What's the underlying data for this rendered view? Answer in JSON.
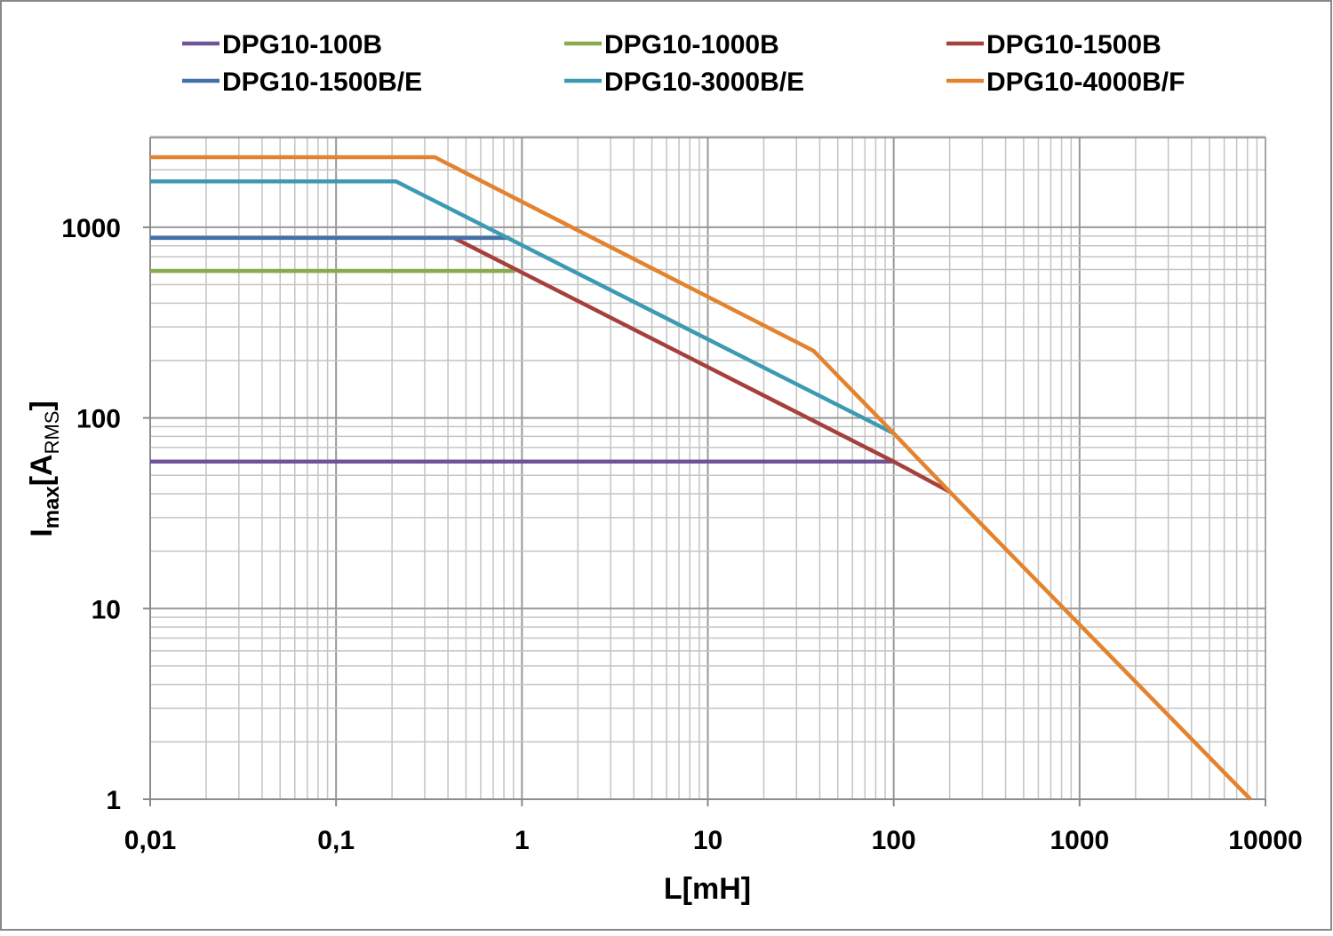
{
  "chart_data": {
    "type": "line",
    "title": "",
    "xlabel": "L[mH]",
    "ylabel_main": "I",
    "ylabel_sub": "max",
    "ylabel_bracket_open": "[A",
    "ylabel_unit_sub": "RMS",
    "ylabel_bracket_close": "]",
    "xscale": "log",
    "yscale": "log",
    "xlim": [
      0.01,
      10000
    ],
    "ylim": [
      1,
      3000
    ],
    "grid": true,
    "legend_position": "top",
    "x_tick_values": [
      0.01,
      0.1,
      1,
      10,
      100,
      1000,
      10000
    ],
    "x_tick_labels": [
      "0,01",
      "0,1",
      "1",
      "10",
      "100",
      "1000",
      "10000"
    ],
    "y_tick_values": [
      1,
      10,
      100,
      1000
    ],
    "y_tick_labels": [
      "1",
      "10",
      "100",
      "1000"
    ],
    "series": [
      {
        "name": "DPG10-100B",
        "color": "#7030A0",
        "display_color": "#6f5597",
        "points": [
          [
            0.01,
            59
          ],
          [
            100,
            59
          ]
        ]
      },
      {
        "name": "DPG10-1000B",
        "color": "#8AAA4E",
        "points": [
          [
            0.01,
            590
          ],
          [
            0.92,
            590
          ]
        ]
      },
      {
        "name": "DPG10-1500B",
        "color": "#A5403D",
        "points": [
          [
            0.43,
            880
          ],
          [
            100,
            59
          ],
          [
            200,
            41
          ]
        ]
      },
      {
        "name": "DPG10-1500B/E",
        "color": "#4470AA",
        "points": [
          [
            0.01,
            880
          ],
          [
            0.85,
            880
          ]
        ]
      },
      {
        "name": "DPG10-3000B/E",
        "color": "#3D9AB3",
        "points": [
          [
            0.01,
            1740
          ],
          [
            0.21,
            1740
          ],
          [
            100,
            83
          ]
        ]
      },
      {
        "name": "DPG10-4000B/F",
        "color": "#E4832F",
        "points": [
          [
            0.01,
            2330
          ],
          [
            0.34,
            2330
          ],
          [
            37,
            225
          ],
          [
            100,
            83
          ],
          [
            200,
            41
          ],
          [
            8300,
            1
          ]
        ]
      }
    ]
  }
}
